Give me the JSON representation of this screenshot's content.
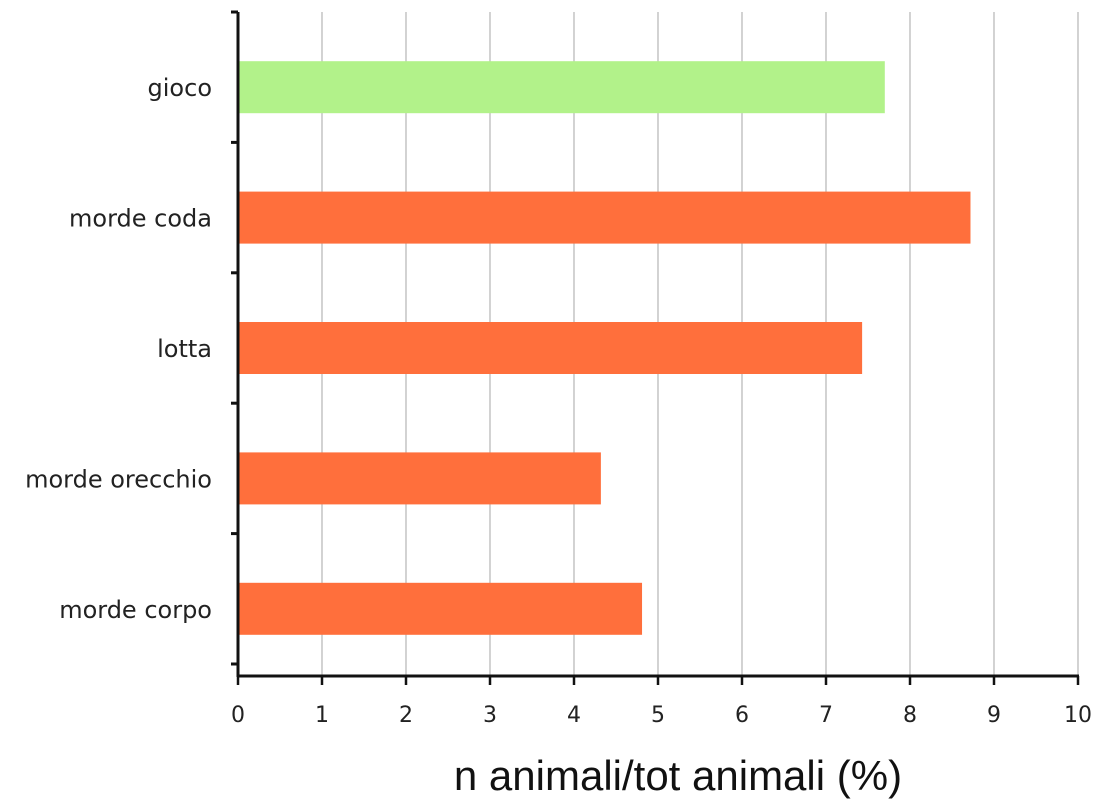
{
  "chart_data": {
    "type": "bar",
    "orientation": "horizontal",
    "categories": [
      "gioco",
      "morde coda",
      "lotta",
      "morde orecchio",
      "morde corpo"
    ],
    "values": [
      7.7,
      8.72,
      7.43,
      4.32,
      4.81
    ],
    "bar_colors": [
      "#B2F28A",
      "#FF6F3C",
      "#FF6F3C",
      "#FF6F3C",
      "#FF6F3C"
    ],
    "xlabel": "n animali/tot animali (%)",
    "ylabel": "",
    "xlim": [
      0,
      10
    ],
    "xticks": [
      "0",
      "1",
      "2",
      "3",
      "4",
      "5",
      "6",
      "7",
      "8",
      "9",
      "10"
    ],
    "grid": "vertical",
    "axis_color": "#111111",
    "grid_color": "#BBBBBB"
  }
}
